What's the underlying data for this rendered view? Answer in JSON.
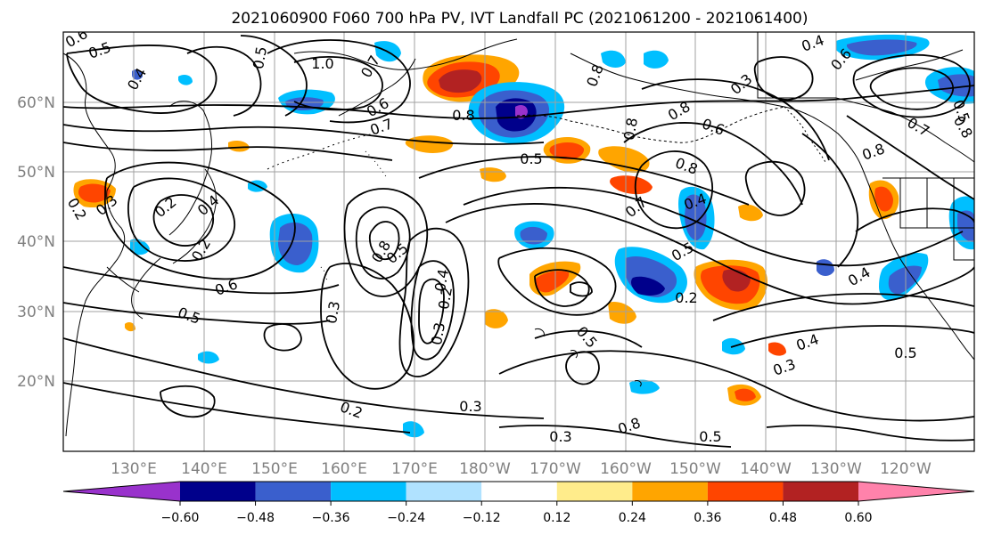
{
  "title": "2021060900 F060 700 hPa PV, IVT Landfall PC (2021061200 - 2021061400)",
  "lat_labels": [
    "60°N",
    "50°N",
    "40°N",
    "30°N",
    "20°N"
  ],
  "lon_labels": [
    "130°E",
    "140°E",
    "150°E",
    "160°E",
    "170°E",
    "180°W",
    "170°W",
    "160°W",
    "150°W",
    "140°W",
    "130°W",
    "120°W"
  ],
  "colorbar": {
    "tick_labels": [
      "−0.60",
      "−0.48",
      "−0.36",
      "−0.24",
      "−0.12",
      "0.12",
      "0.24",
      "0.36",
      "0.48",
      "0.60"
    ],
    "colors": [
      "#9932cc",
      "#00008b",
      "#3a5fcd",
      "#00bfff",
      "#b0e2ff",
      "#ffffff",
      "#ffec8b",
      "#ffa500",
      "#ff4500",
      "#b22222",
      "#ff82ab"
    ]
  },
  "contour_labels": [
    {
      "text": "0.6"
    },
    {
      "text": "0.5"
    },
    {
      "text": "0.4"
    },
    {
      "text": "0.5"
    },
    {
      "text": "1.0"
    },
    {
      "text": "0.7"
    },
    {
      "text": "0.8"
    },
    {
      "text": "0.6"
    },
    {
      "text": "0.8"
    },
    {
      "text": "0.7"
    },
    {
      "text": "0.5"
    },
    {
      "text": "0.8"
    },
    {
      "text": "0.6"
    },
    {
      "text": "0.8"
    },
    {
      "text": "0.3"
    },
    {
      "text": "0.4"
    },
    {
      "text": "0.6"
    },
    {
      "text": "0.5"
    },
    {
      "text": "0.8"
    },
    {
      "text": "0.8"
    },
    {
      "text": "0.7"
    },
    {
      "text": "0.8"
    },
    {
      "text": "0.7"
    },
    {
      "text": "0.8"
    },
    {
      "text": "0.5"
    },
    {
      "text": "0.4"
    },
    {
      "text": "0.2"
    },
    {
      "text": "0.4"
    },
    {
      "text": "0.5"
    },
    {
      "text": "0.2"
    },
    {
      "text": "0.3"
    },
    {
      "text": "0.5"
    },
    {
      "text": "0.3"
    },
    {
      "text": "0.5"
    },
    {
      "text": "0.6"
    },
    {
      "text": "0.2"
    },
    {
      "text": "0.3"
    },
    {
      "text": "0.2"
    },
    {
      "text": "0.4"
    },
    {
      "text": "0.2"
    },
    {
      "text": "0.2"
    },
    {
      "text": "0.3"
    },
    {
      "text": "0.3"
    },
    {
      "text": "0.4"
    },
    {
      "text": "0.4"
    },
    {
      "text": "0.5"
    },
    {
      "text": "0.3"
    },
    {
      "text": "0.8"
    },
    {
      "text": "0.5"
    }
  ],
  "colors": {
    "frame": "#000000",
    "grid": "#a0a0a0",
    "axis_label": "#808080",
    "contour": "#000000"
  }
}
